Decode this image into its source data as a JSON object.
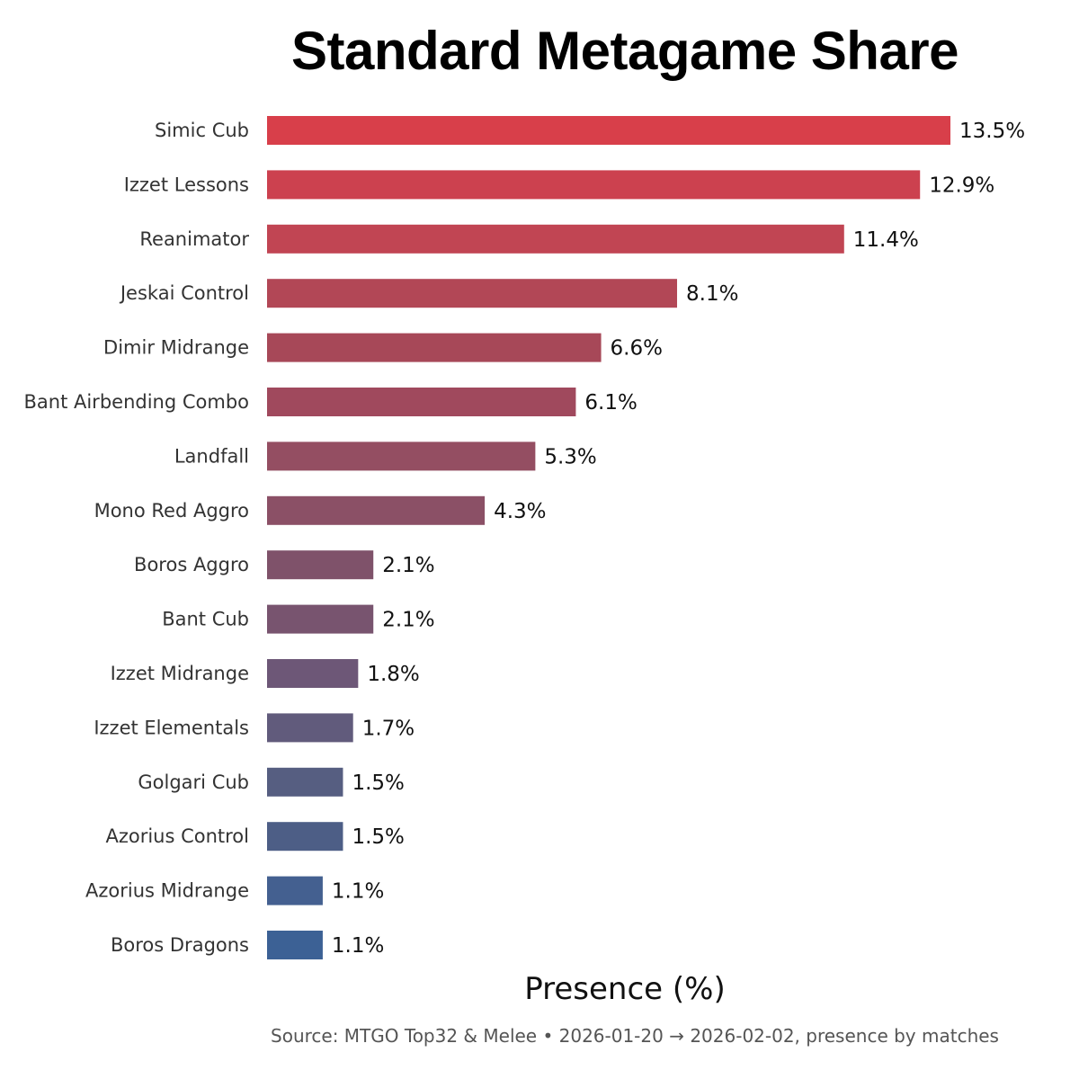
{
  "chart_data": {
    "type": "bar",
    "orientation": "horizontal",
    "title": "Standard Metagame Share",
    "xlabel": "Presence (%)",
    "ylabel": "",
    "source": "Source: MTGO Top32 & Melee  •  2026-01-20 → 2026-02-02, presence by matches",
    "xlim": [
      0,
      13.5
    ],
    "grid": false,
    "legend": "none",
    "value_suffix": "%",
    "categories": [
      "Simic Cub",
      "Izzet Lessons",
      "Reanimator",
      "Jeskai Control",
      "Dimir Midrange",
      "Bant Airbending Combo",
      "Landfall",
      "Mono Red Aggro",
      "Boros Aggro",
      "Bant Cub",
      "Izzet Midrange",
      "Izzet Elementals",
      "Golgari Cub",
      "Azorius Control",
      "Azorius Midrange",
      "Boros Dragons"
    ],
    "values": [
      13.5,
      12.9,
      11.4,
      8.1,
      6.6,
      6.1,
      5.3,
      4.3,
      2.1,
      2.1,
      1.8,
      1.7,
      1.5,
      1.5,
      1.1,
      1.1
    ],
    "colors": [
      "#d83f4a",
      "#cc414f",
      "#c14553",
      "#b24756",
      "#a74858",
      "#a0495d",
      "#944e62",
      "#8b5066",
      "#7f526a",
      "#78546f",
      "#6d5777",
      "#615b7c",
      "#565e81",
      "#4d5e86",
      "#446090",
      "#3c6195"
    ]
  }
}
